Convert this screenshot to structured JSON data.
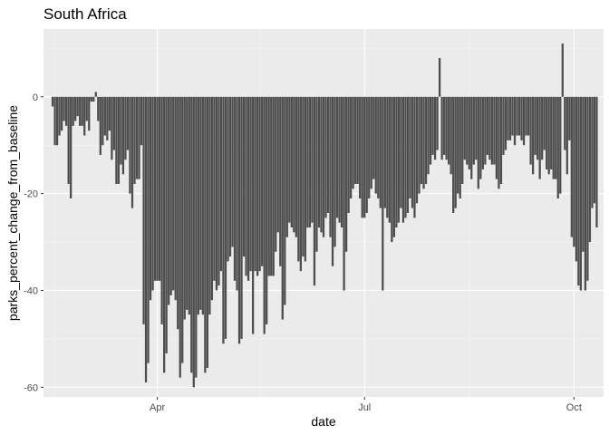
{
  "chart_data": {
    "type": "bar",
    "title": "South Africa",
    "xlabel": "date",
    "ylabel": "parks_percent_change_from_baseline",
    "x_range": [
      "2020-02-11",
      "2020-10-14"
    ],
    "ylim": [
      -62,
      14
    ],
    "x_ticks": [
      {
        "label": "Apr",
        "date": "2020-04-01"
      },
      {
        "label": "Jul",
        "date": "2020-07-01"
      },
      {
        "label": "Oct",
        "date": "2020-10-01"
      }
    ],
    "y_ticks": [
      0,
      -20,
      -40,
      -60
    ],
    "grid": true,
    "start_date": "2020-02-15",
    "series": [
      {
        "values": [
          -2,
          -10,
          -10,
          -8,
          -7,
          -5,
          -6,
          -18,
          -21,
          -6,
          -5,
          -4,
          -6,
          -6,
          -8,
          -5,
          -7,
          -1,
          -1,
          1,
          -5,
          -12,
          -10,
          -8,
          -9,
          -7,
          -13,
          -11,
          -18,
          -18,
          -14,
          -16,
          -13,
          -11,
          -20,
          -23,
          -18,
          -17,
          -17,
          -10,
          -47,
          -59,
          -55,
          -42,
          -40,
          -38,
          -38,
          -38,
          -47,
          -57,
          -53,
          -43,
          -41,
          -40,
          -42,
          -48,
          -58,
          -55,
          -46,
          -44,
          -45,
          -57,
          -60,
          -58,
          -45,
          -44,
          -45,
          -57,
          -56,
          -45,
          -42,
          -38,
          -40,
          -39,
          -36,
          -51,
          -50,
          -34,
          -33,
          -31,
          -38,
          -40,
          -51,
          -50,
          -33,
          -37,
          -38,
          -36,
          -49,
          -36,
          -37,
          -36,
          -35,
          -49,
          -47,
          -37,
          -37,
          -37,
          -32,
          -28,
          -35,
          -46,
          -43,
          -29,
          -26,
          -27,
          -28,
          -29,
          -34,
          -36,
          -33,
          -34,
          -27,
          -27,
          -26,
          -39,
          -32,
          -27,
          -28,
          -29,
          -25,
          -24,
          -29,
          -35,
          -31,
          -25,
          -26,
          -27,
          -40,
          -32,
          -24,
          -21,
          -19,
          -18,
          -18,
          -21,
          -25,
          -25,
          -24,
          -21,
          -19,
          -17,
          -20,
          -21,
          -23,
          -40,
          -23,
          -25,
          -26,
          -30,
          -29,
          -27,
          -26,
          -23,
          -26,
          -25,
          -24,
          -21,
          -23,
          -25,
          -22,
          -20,
          -18,
          -19,
          -18,
          -16,
          -14,
          -12,
          -13,
          -11,
          8,
          -13,
          -12,
          -13,
          -14,
          -16,
          -24,
          -23,
          -20,
          -21,
          -18,
          -13,
          -14,
          -15,
          -17,
          -14,
          -13,
          -19,
          -17,
          -15,
          -14,
          -12,
          -13,
          -14,
          -14,
          -17,
          -19,
          -18,
          -12,
          -11,
          -9,
          -9,
          -8,
          -10,
          -8,
          -8,
          -9,
          -10,
          -8,
          -8,
          -14,
          -16,
          -12,
          -13,
          -17,
          -13,
          -11,
          -15,
          -16,
          -15,
          -17,
          -17,
          -21,
          -20,
          11,
          -11,
          -16,
          -9,
          -29,
          -31,
          -34,
          -39,
          -40,
          -32,
          -40,
          -38,
          -30,
          -23,
          -22,
          -27
        ]
      }
    ]
  }
}
